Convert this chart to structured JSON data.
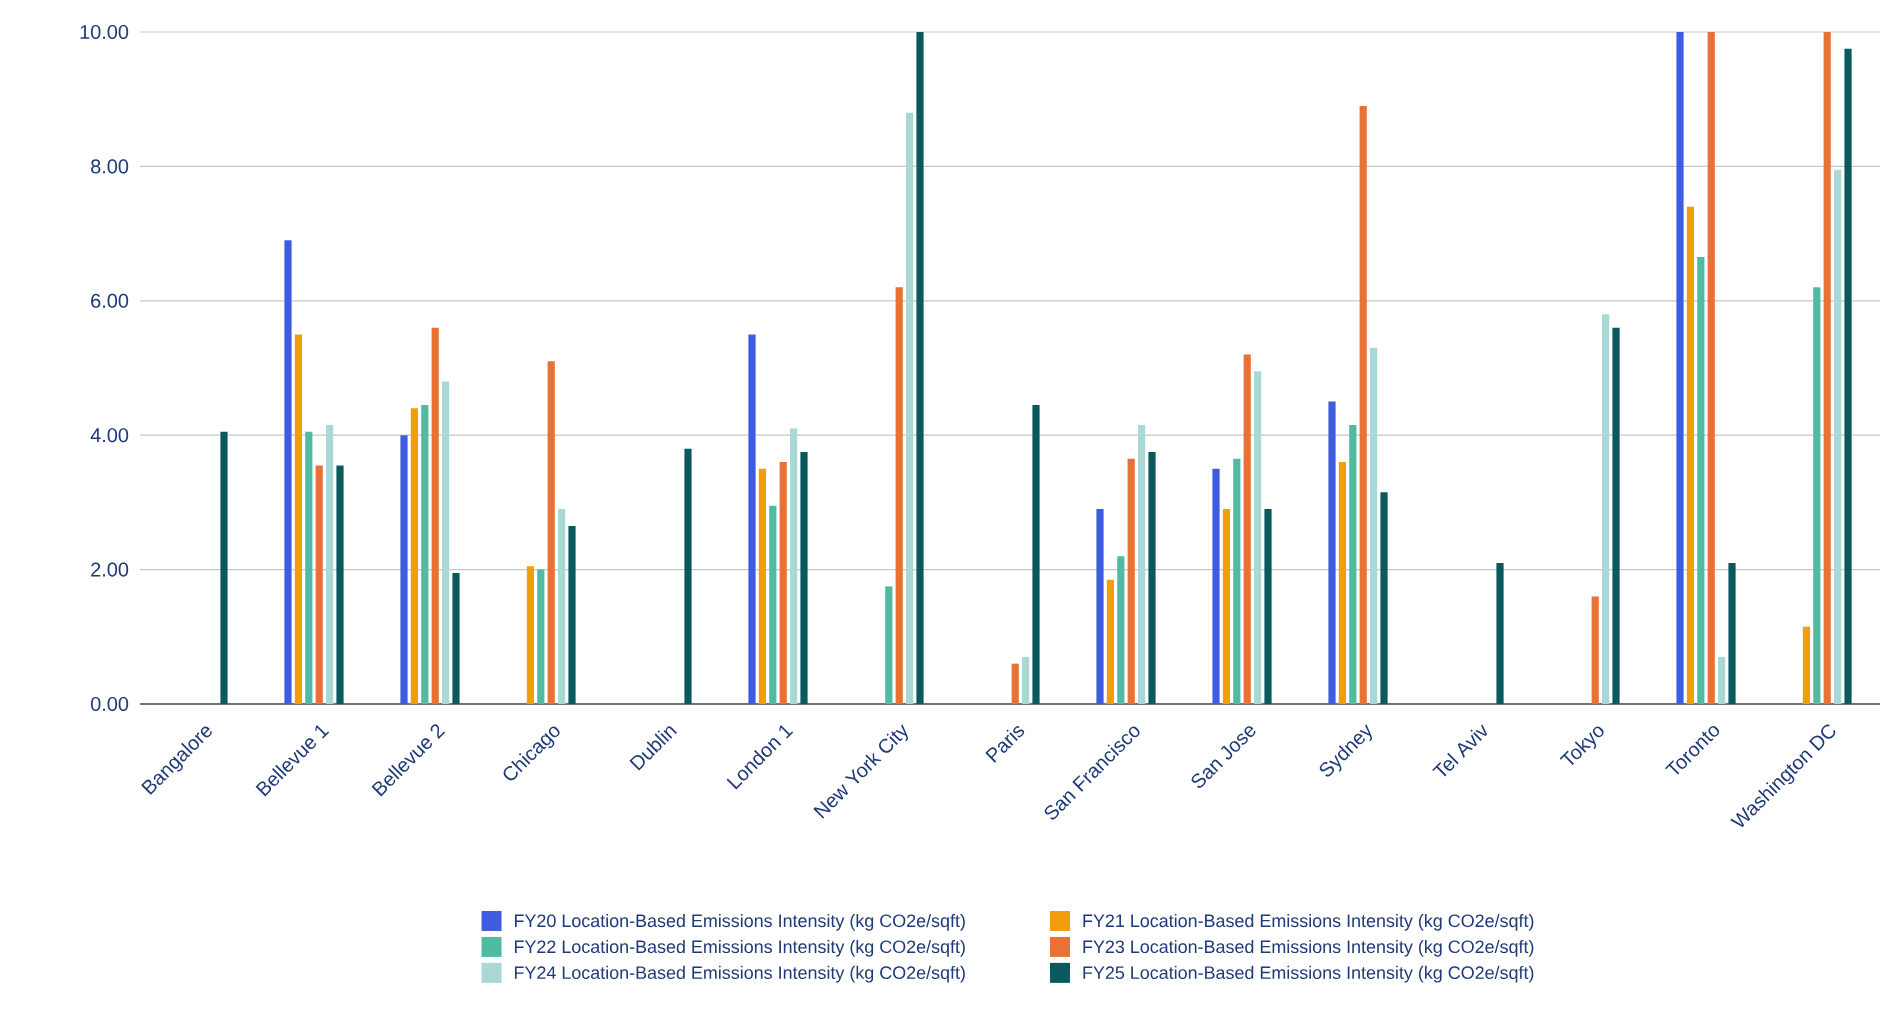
{
  "chart_data": {
    "type": "bar",
    "categories": [
      "Bangalore",
      "Bellevue 1",
      "Bellevue 2",
      "Chicago",
      "Dublin",
      "London 1",
      "New York City",
      "Paris",
      "San Francisco",
      "San Jose",
      "Sydney",
      "Tel Aviv",
      "Tokyo",
      "Toronto",
      "Washington DC"
    ],
    "series": [
      {
        "name": "FY20 Location-Based Emissions Intensity (kg CO2e/sqft)",
        "color": "#3f5be0",
        "values": [
          null,
          6.9,
          4.0,
          null,
          null,
          5.5,
          null,
          null,
          2.9,
          3.5,
          4.5,
          null,
          null,
          10,
          null
        ]
      },
      {
        "name": "FY21 Location-Based Emissions Intensity (kg CO2e/sqft)",
        "color": "#f29e0c",
        "values": [
          null,
          5.5,
          4.4,
          2.05,
          null,
          3.5,
          null,
          null,
          1.85,
          2.9,
          3.6,
          null,
          null,
          7.4,
          1.15
        ]
      },
      {
        "name": "FY22 Location-Based Emissions Intensity (kg CO2e/sqft)",
        "color": "#4fbba3",
        "values": [
          null,
          4.05,
          4.45,
          2.0,
          null,
          2.95,
          1.75,
          null,
          2.2,
          3.65,
          4.15,
          null,
          null,
          6.65,
          6.2
        ]
      },
      {
        "name": "FY23 Location-Based Emissions Intensity (kg CO2e/sqft)",
        "color": "#e87236",
        "values": [
          null,
          3.55,
          5.6,
          5.1,
          null,
          3.6,
          6.2,
          0.6,
          3.65,
          5.2,
          8.9,
          null,
          1.6,
          10,
          10
        ]
      },
      {
        "name": "FY24 Location-Based Emissions Intensity (kg CO2e/sqft)",
        "color": "#a9d8d6",
        "values": [
          null,
          4.15,
          4.8,
          2.9,
          null,
          4.1,
          8.8,
          0.7,
          4.15,
          4.95,
          5.3,
          null,
          5.8,
          0.7,
          7.95
        ]
      },
      {
        "name": "FY25 Location-Based Emissions Intensity (kg CO2e/sqft)",
        "color": "#0a5a5d",
        "values": [
          4.05,
          3.55,
          1.95,
          2.65,
          3.8,
          3.75,
          10,
          4.45,
          3.75,
          2.9,
          3.15,
          2.1,
          5.6,
          2.1,
          9.75
        ]
      }
    ],
    "ylim": [
      0,
      10
    ],
    "yticks": [
      {
        "value": 0,
        "label": "0.00"
      },
      {
        "value": 2,
        "label": "2.00"
      },
      {
        "value": 4,
        "label": "4.00"
      },
      {
        "value": 6,
        "label": "6.00"
      },
      {
        "value": 8,
        "label": "8.00"
      },
      {
        "value": 10,
        "label": "10.00"
      }
    ],
    "grid": "y",
    "legend": "bottom"
  }
}
